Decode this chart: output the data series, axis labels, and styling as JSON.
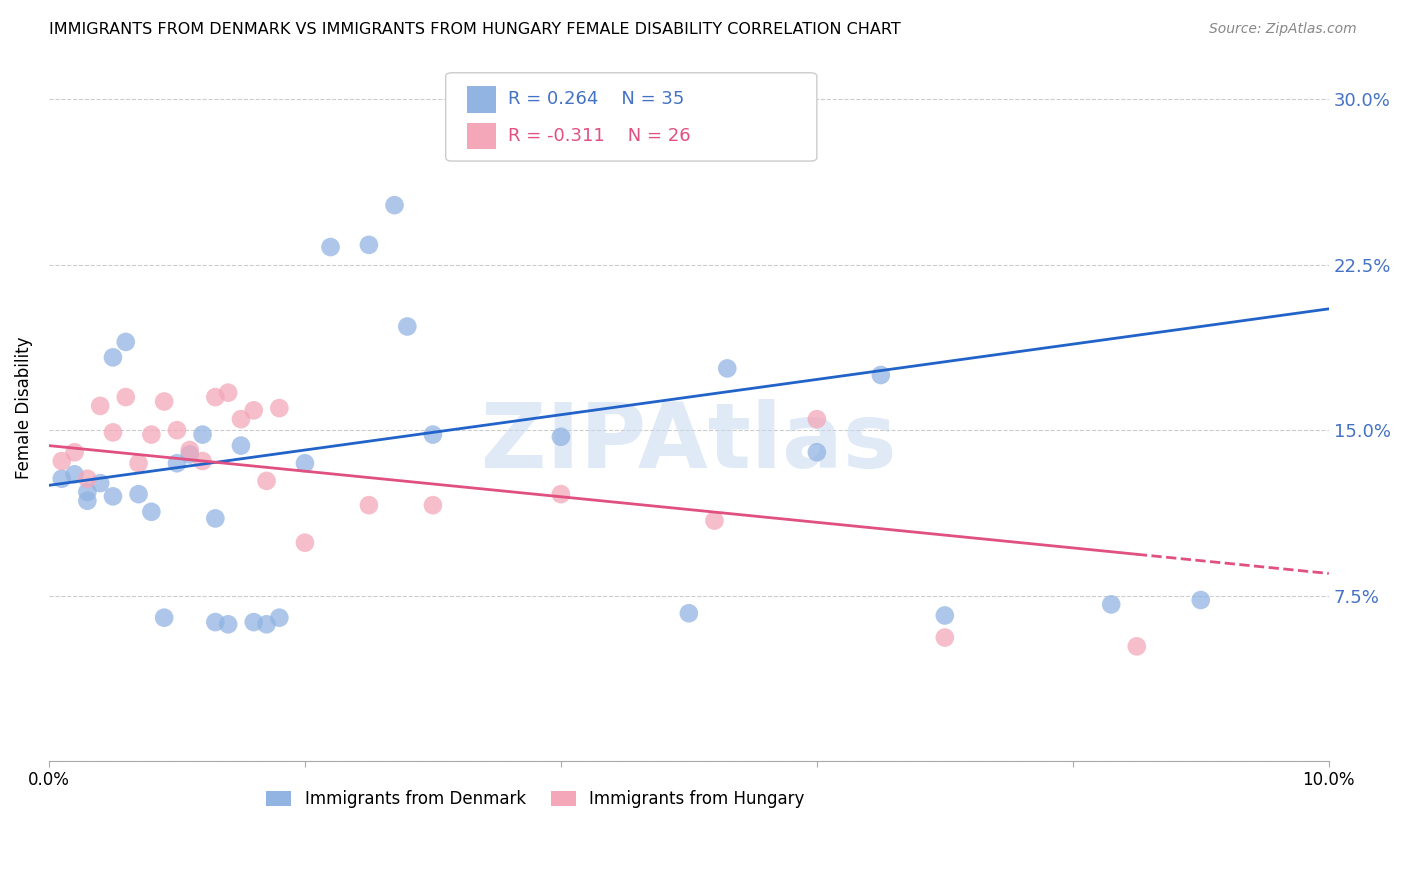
{
  "title": "IMMIGRANTS FROM DENMARK VS IMMIGRANTS FROM HUNGARY FEMALE DISABILITY CORRELATION CHART",
  "source": "Source: ZipAtlas.com",
  "ylabel": "Female Disability",
  "right_yticklabels": [
    "",
    "7.5%",
    "15.0%",
    "22.5%",
    "30.0%"
  ],
  "right_yticks": [
    0.0,
    0.075,
    0.15,
    0.225,
    0.3
  ],
  "xlim": [
    0.0,
    0.1
  ],
  "ylim": [
    0.0,
    0.32
  ],
  "watermark": "ZIPAtlas",
  "denmark_color": "#92b4e3",
  "hungary_color": "#f4a7b9",
  "denmark_line_color": "#2163c8",
  "hungary_line_color": "#e05080",
  "background_color": "#ffffff",
  "grid_color": "#cccccc",
  "denmark_x": [
    0.001,
    0.002,
    0.003,
    0.003,
    0.004,
    0.005,
    0.005,
    0.006,
    0.007,
    0.008,
    0.009,
    0.01,
    0.011,
    0.012,
    0.013,
    0.013,
    0.014,
    0.015,
    0.016,
    0.017,
    0.018,
    0.02,
    0.022,
    0.025,
    0.027,
    0.028,
    0.03,
    0.04,
    0.05,
    0.053,
    0.06,
    0.065,
    0.07,
    0.083,
    0.09
  ],
  "denmark_y": [
    0.128,
    0.13,
    0.122,
    0.118,
    0.126,
    0.12,
    0.183,
    0.19,
    0.121,
    0.113,
    0.065,
    0.135,
    0.139,
    0.148,
    0.11,
    0.063,
    0.062,
    0.143,
    0.063,
    0.062,
    0.065,
    0.135,
    0.233,
    0.234,
    0.252,
    0.197,
    0.148,
    0.147,
    0.067,
    0.178,
    0.14,
    0.175,
    0.066,
    0.071,
    0.073
  ],
  "hungary_x": [
    0.001,
    0.002,
    0.003,
    0.004,
    0.005,
    0.006,
    0.007,
    0.008,
    0.009,
    0.01,
    0.011,
    0.012,
    0.013,
    0.014,
    0.015,
    0.016,
    0.017,
    0.018,
    0.02,
    0.025,
    0.03,
    0.04,
    0.052,
    0.06,
    0.07,
    0.085
  ],
  "hungary_y": [
    0.136,
    0.14,
    0.128,
    0.161,
    0.149,
    0.165,
    0.135,
    0.148,
    0.163,
    0.15,
    0.141,
    0.136,
    0.165,
    0.167,
    0.155,
    0.159,
    0.127,
    0.16,
    0.099,
    0.116,
    0.116,
    0.121,
    0.109,
    0.155,
    0.056,
    0.052
  ],
  "legend_line1_r": "R = 0.264",
  "legend_line1_n": "N = 35",
  "legend_line2_r": "R = -0.311",
  "legend_line2_n": "N = 26",
  "dk_legend_label": "Immigrants from Denmark",
  "hu_legend_label": "Immigrants from Hungary"
}
